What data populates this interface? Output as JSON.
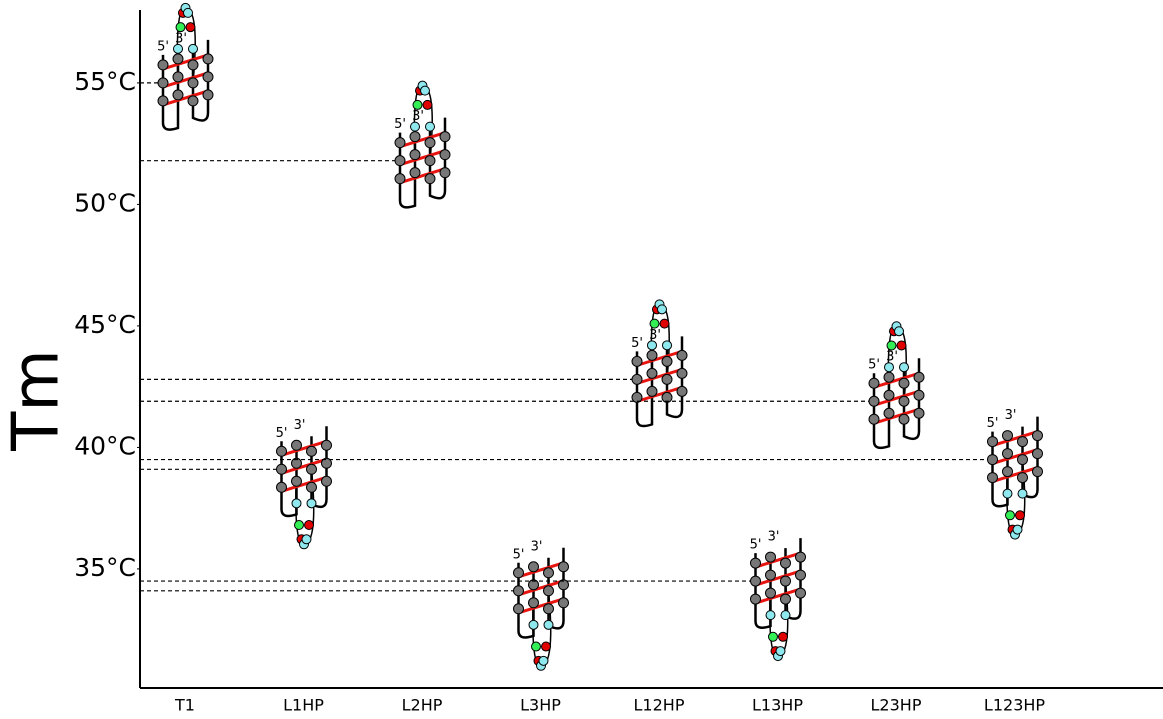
{
  "chart_data": {
    "type": "structure-plot",
    "y_label": "Tm",
    "categories": [
      "T1",
      "L1HP",
      "L2HP",
      "L3HP",
      "L12HP",
      "L13HP",
      "L23HP",
      "L123HP"
    ],
    "values": [
      55,
      39.1,
      51.8,
      34.1,
      42.8,
      34.5,
      41.9,
      39.5
    ],
    "strand_labels": [
      "5'",
      "3'"
    ],
    "ylim": [
      30.1,
      58
    ],
    "yticks": [
      {
        "value": 35,
        "label": "35°C"
      },
      {
        "value": 40,
        "label": "40°C"
      },
      {
        "value": 45,
        "label": "45°C"
      },
      {
        "value": 50,
        "label": "50°C"
      },
      {
        "value": 55,
        "label": "55°C"
      }
    ],
    "colors": {
      "stem": "#777777",
      "tetrad_bond": "#e8140f",
      "loop": "#8ee8ee",
      "loop_alt": "#e00000",
      "loop_mark": "#33ee55"
    }
  }
}
